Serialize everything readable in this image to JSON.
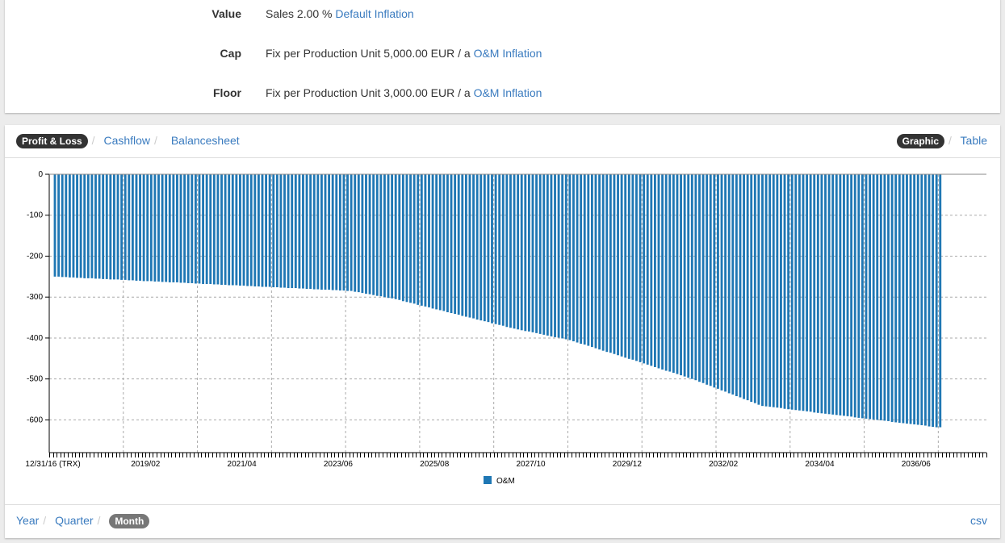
{
  "settings": {
    "rows": [
      {
        "label": "Value",
        "text": "Sales 2.00 %",
        "link": "Default Inflation"
      },
      {
        "label": "Cap",
        "text": "Fix per Production Unit 5,000.00 EUR / a",
        "link": "O&M Inflation"
      },
      {
        "label": "Floor",
        "text": "Fix per Production Unit 3,000.00 EUR / a",
        "link": "O&M Inflation"
      }
    ]
  },
  "report_tabs": [
    "Profit & Loss",
    "Cashflow",
    "Balancesheet"
  ],
  "view_tabs": [
    "Graphic",
    "Table"
  ],
  "period_tabs": [
    "Year",
    "Quarter",
    "Month"
  ],
  "csv_label": "csv",
  "chart_data": {
    "type": "bar",
    "series": [
      {
        "name": "O&M",
        "color": "#1f77b4",
        "values": [
          -250,
          -250,
          -251,
          -251,
          -252,
          -252,
          -253,
          -253,
          -254,
          -254,
          -254,
          -255,
          -255,
          -256,
          -256,
          -257,
          -257,
          -257,
          -258,
          -258,
          -259,
          -259,
          -260,
          -260,
          -261,
          -261,
          -261,
          -262,
          -262,
          -263,
          -263,
          -264,
          -264,
          -264,
          -265,
          -265,
          -266,
          -266,
          -267,
          -267,
          -268,
          -268,
          -268,
          -269,
          -269,
          -270,
          -270,
          -271,
          -271,
          -271,
          -272,
          -272,
          -273,
          -273,
          -274,
          -274,
          -275,
          -275,
          -275,
          -276,
          -276,
          -277,
          -277,
          -278,
          -278,
          -278,
          -279,
          -279,
          -280,
          -280,
          -281,
          -281,
          -282,
          -282,
          -282,
          -283,
          -283,
          -284,
          -284,
          -285,
          -285,
          -287,
          -288,
          -290,
          -292,
          -293,
          -295,
          -297,
          -298,
          -300,
          -302,
          -303,
          -305,
          -307,
          -310,
          -312,
          -314,
          -316,
          -319,
          -321,
          -323,
          -325,
          -328,
          -330,
          -332,
          -334,
          -337,
          -339,
          -341,
          -343,
          -346,
          -348,
          -350,
          -352,
          -355,
          -357,
          -359,
          -361,
          -364,
          -366,
          -368,
          -370,
          -373,
          -375,
          -377,
          -379,
          -381,
          -383,
          -384,
          -386,
          -388,
          -390,
          -392,
          -394,
          -396,
          -398,
          -399,
          -401,
          -403,
          -405,
          -408,
          -411,
          -414,
          -416,
          -419,
          -422,
          -425,
          -428,
          -431,
          -434,
          -436,
          -439,
          -442,
          -445,
          -448,
          -451,
          -453,
          -456,
          -459,
          -462,
          -465,
          -468,
          -471,
          -474,
          -477,
          -480,
          -482,
          -485,
          -488,
          -491,
          -494,
          -497,
          -500,
          -503,
          -507,
          -510,
          -514,
          -517,
          -521,
          -524,
          -528,
          -531,
          -535,
          -538,
          -542,
          -545,
          -549,
          -552,
          -556,
          -559,
          -563,
          -566,
          -567,
          -568,
          -569,
          -570,
          -571,
          -573,
          -574,
          -575,
          -576,
          -577,
          -578,
          -579,
          -580,
          -582,
          -583,
          -584,
          -585,
          -586,
          -587,
          -588,
          -589,
          -590,
          -591,
          -592,
          -594,
          -595,
          -596,
          -597,
          -598,
          -599,
          -600,
          -601,
          -602,
          -603,
          -605,
          -606,
          -607,
          -608,
          -609,
          -610,
          -611,
          -612,
          -613,
          -614,
          -616,
          -617,
          -618,
          -618
        ]
      }
    ],
    "x_unit": "month index (0 = 2017/01)",
    "xlim": [
      -1,
      252
    ],
    "x_ticks": [
      {
        "m": 0,
        "label": "12/31/16 (TRX)"
      },
      {
        "m": 25,
        "label": "2019/02"
      },
      {
        "m": 51,
        "label": "2021/04"
      },
      {
        "m": 77,
        "label": "2023/06"
      },
      {
        "m": 103,
        "label": "2025/08"
      },
      {
        "m": 129,
        "label": "2027/10"
      },
      {
        "m": 155,
        "label": "2029/12"
      },
      {
        "m": 181,
        "label": "2032/02"
      },
      {
        "m": 207,
        "label": "2034/04"
      },
      {
        "m": 233,
        "label": "2036/06"
      }
    ],
    "ylim": [
      -680,
      0
    ],
    "y_ticks": [
      0,
      -100,
      -200,
      -300,
      -400,
      -500,
      -600
    ],
    "grid": true,
    "legend": "bottom-center"
  }
}
